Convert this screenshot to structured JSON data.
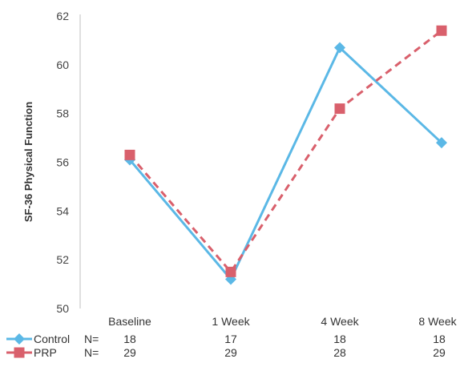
{
  "chart_data": {
    "type": "line",
    "categories": [
      "Baseline",
      "1 Week",
      "4 Week",
      "8 Week"
    ],
    "ylabel": "SF-36 Physical Function",
    "ylim": [
      50,
      62
    ],
    "yticks": [
      "50",
      "52",
      "54",
      "56",
      "58",
      "60",
      "62"
    ],
    "grid": false,
    "legend_position": "bottom-left",
    "series": [
      {
        "name": "Control",
        "values": [
          56.1,
          51.2,
          60.7,
          56.8
        ],
        "n": [
          "18",
          "17",
          "18",
          "18"
        ],
        "color": "#5bb8e6",
        "dash": "solid",
        "marker": "diamond"
      },
      {
        "name": "PRP",
        "values": [
          56.3,
          51.5,
          58.2,
          61.4
        ],
        "n": [
          "29",
          "29",
          "28",
          "29"
        ],
        "color": "#d9606c",
        "dash": "dashed",
        "marker": "square"
      }
    ],
    "n_label": "N="
  }
}
